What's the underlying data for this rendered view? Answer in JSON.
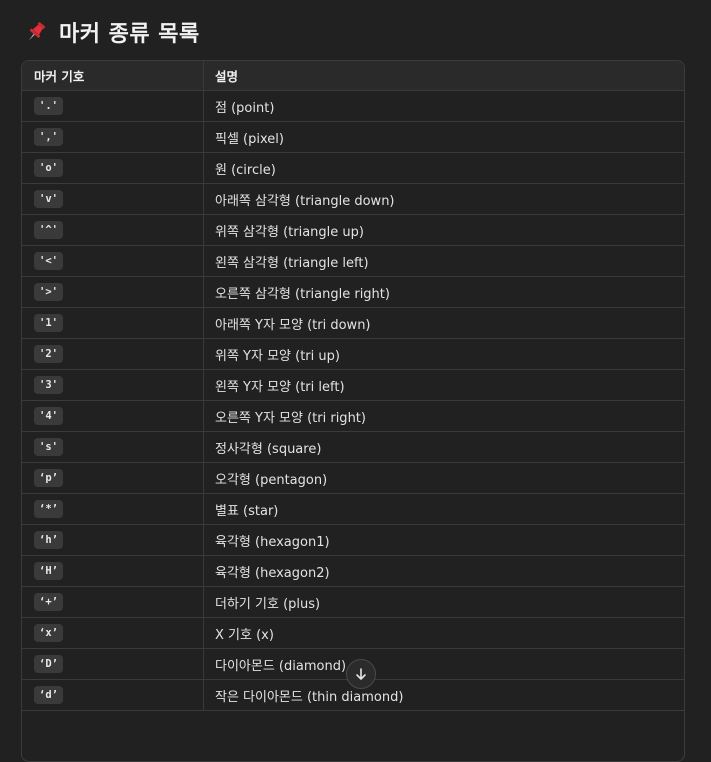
{
  "heading": {
    "icon": "pushpin-icon",
    "text": "마커 종류 목록"
  },
  "table": {
    "headers": [
      "마커 기호",
      "설명"
    ],
    "rows": [
      {
        "code": "'.'",
        "desc": "점 (point)"
      },
      {
        "code": "','",
        "desc": "픽셀 (pixel)"
      },
      {
        "code": "'o'",
        "desc": "원 (circle)"
      },
      {
        "code": "'v'",
        "desc": "아래쪽 삼각형 (triangle down)"
      },
      {
        "code": "'^'",
        "desc": "위쪽 삼각형 (triangle up)"
      },
      {
        "code": "'<'",
        "desc": "왼쪽 삼각형 (triangle left)"
      },
      {
        "code": "'>'",
        "desc": "오른쪽 삼각형 (triangle right)"
      },
      {
        "code": "'1'",
        "desc": "아래쪽 Y자 모양 (tri down)"
      },
      {
        "code": "'2'",
        "desc": "위쪽 Y자 모양 (tri up)"
      },
      {
        "code": "'3'",
        "desc": "왼쪽 Y자 모양 (tri left)"
      },
      {
        "code": "'4'",
        "desc": "오른쪽 Y자 모양 (tri right)"
      },
      {
        "code": "'s'",
        "desc": "정사각형 (square)"
      },
      {
        "code": "‘p’",
        "desc": "오각형 (pentagon)"
      },
      {
        "code": "‘*’",
        "desc": "별표 (star)"
      },
      {
        "code": "‘h’",
        "desc": "육각형 (hexagon1)"
      },
      {
        "code": "‘H’",
        "desc": "육각형 (hexagon2)"
      },
      {
        "code": "‘+’",
        "desc": "더하기 기호 (plus)"
      },
      {
        "code": "‘x’",
        "desc": "X 기호 (x)"
      },
      {
        "code": "‘D’",
        "desc": "다이아몬드 (diamond)"
      },
      {
        "code": "‘d’",
        "desc": "작은 다이아몬드 (thin diamond)"
      }
    ]
  },
  "scroll_button": {
    "icon": "arrow-down-icon"
  },
  "colors": {
    "background": "#212121",
    "header_row": "#2a2a2a",
    "code_chip": "#3a3a3a",
    "border": "#3a3a3a",
    "pin_red": "#e0313b"
  }
}
